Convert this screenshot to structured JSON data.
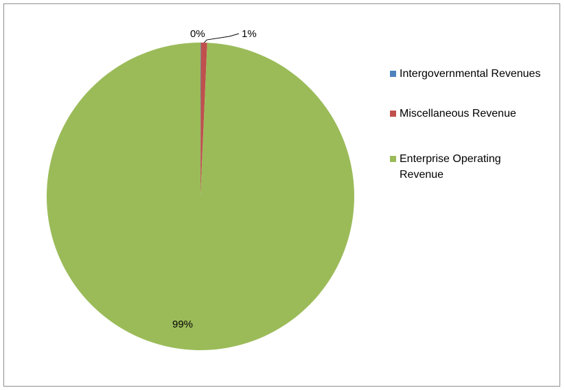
{
  "chart_data": {
    "type": "pie",
    "title": "",
    "slices": [
      {
        "name": "Intergovernmental Revenues",
        "label": "0%",
        "value": 0.05,
        "color": "#4f81bd"
      },
      {
        "name": "Miscellaneous Revenue",
        "label": "1%",
        "value": 0.65,
        "color": "#c0504d"
      },
      {
        "name": "Enterprise Operating Revenue",
        "label": "99%",
        "value": 99.3,
        "color": "#9bbb59"
      }
    ],
    "legend_position": "right"
  }
}
